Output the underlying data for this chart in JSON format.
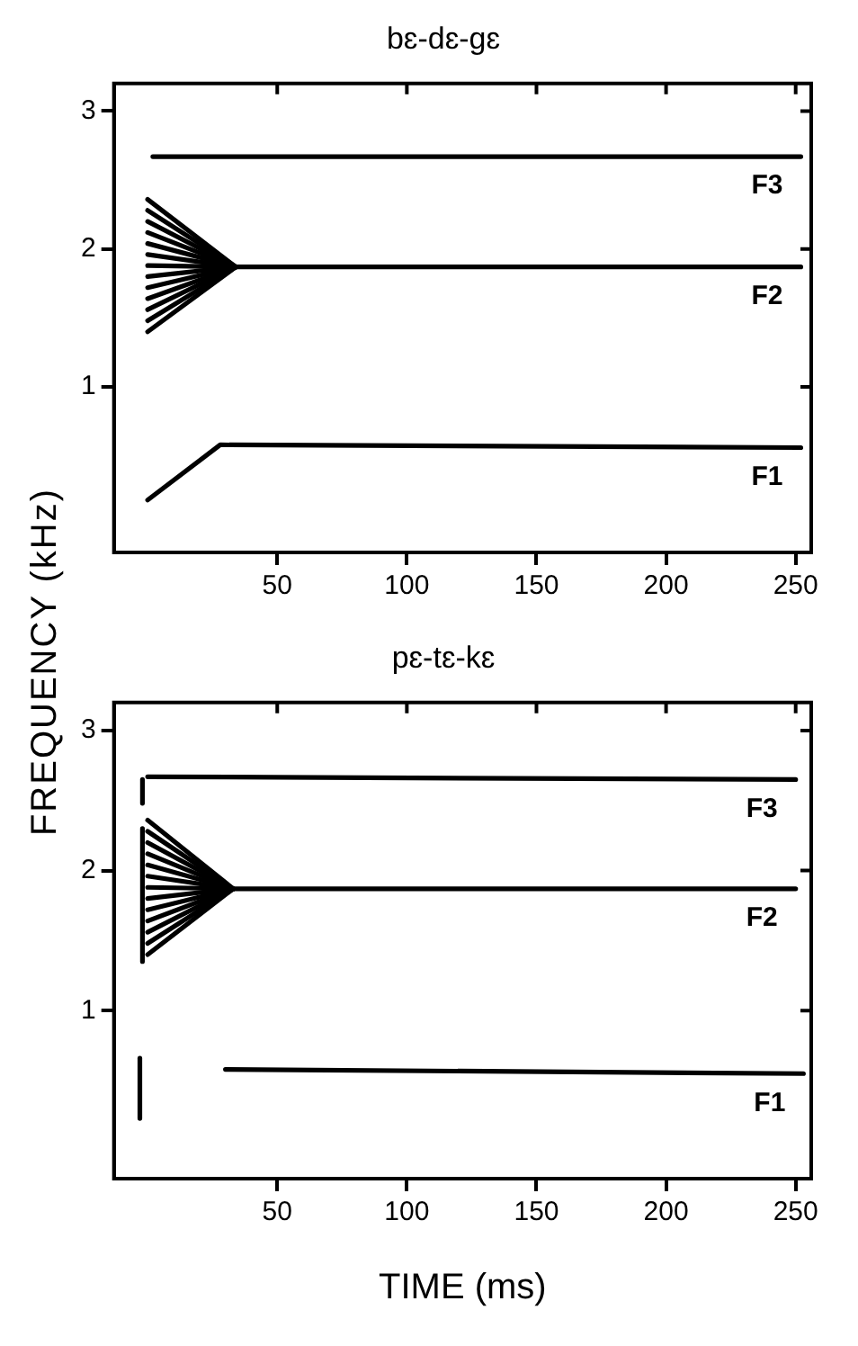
{
  "chart_data": [
    {
      "type": "line",
      "title": "bɛ-dɛ-gɛ",
      "ylabel": "FREQUENCY (kHz)",
      "xlim": [
        -13,
        256
      ],
      "ylim": [
        -0.2,
        3.2
      ],
      "xticks": [
        50,
        100,
        150,
        200,
        250
      ],
      "yticks": [
        1,
        2,
        3
      ],
      "series": [
        {
          "name": "F3",
          "color": "#000000",
          "x": [
            2,
            252
          ],
          "values": [
            2.67,
            2.67
          ]
        },
        {
          "name": "F2",
          "color": "#000000",
          "x": [
            0,
            34,
            252
          ],
          "values": [
            1.88,
            1.87,
            1.87
          ]
        },
        {
          "color": "#000000",
          "x": [
            0,
            34
          ],
          "values": [
            2.36,
            1.87
          ]
        },
        {
          "color": "#000000",
          "x": [
            0,
            34
          ],
          "values": [
            2.28,
            1.87
          ]
        },
        {
          "color": "#000000",
          "x": [
            0,
            34
          ],
          "values": [
            2.2,
            1.87
          ]
        },
        {
          "color": "#000000",
          "x": [
            0,
            34
          ],
          "values": [
            2.12,
            1.87
          ]
        },
        {
          "color": "#000000",
          "x": [
            0,
            34
          ],
          "values": [
            2.04,
            1.87
          ]
        },
        {
          "color": "#000000",
          "x": [
            0,
            34
          ],
          "values": [
            1.96,
            1.87
          ]
        },
        {
          "color": "#000000",
          "x": [
            0,
            34
          ],
          "values": [
            1.8,
            1.87
          ]
        },
        {
          "color": "#000000",
          "x": [
            0,
            34
          ],
          "values": [
            1.72,
            1.87
          ]
        },
        {
          "color": "#000000",
          "x": [
            0,
            34
          ],
          "values": [
            1.64,
            1.87
          ]
        },
        {
          "color": "#000000",
          "x": [
            0,
            34
          ],
          "values": [
            1.56,
            1.87
          ]
        },
        {
          "color": "#000000",
          "x": [
            0,
            34
          ],
          "values": [
            1.48,
            1.87
          ]
        },
        {
          "color": "#000000",
          "x": [
            0,
            34
          ],
          "values": [
            1.4,
            1.87
          ]
        },
        {
          "name": "F1",
          "color": "#000000",
          "x": [
            0,
            28,
            252
          ],
          "values": [
            0.18,
            0.58,
            0.56
          ]
        }
      ]
    },
    {
      "type": "line",
      "title": "pɛ-tɛ-kɛ",
      "xlabel": "TIME (ms)",
      "xlim": [
        -13,
        256
      ],
      "ylim": [
        -0.2,
        3.2
      ],
      "xticks": [
        50,
        100,
        150,
        200,
        250
      ],
      "yticks": [
        1,
        2,
        3
      ],
      "series": [
        {
          "color": "#000000",
          "x": [
            -2,
            -2
          ],
          "values": [
            2.48,
            2.65
          ]
        },
        {
          "name": "F3",
          "color": "#000000",
          "x": [
            0,
            250
          ],
          "values": [
            2.67,
            2.65
          ]
        },
        {
          "color": "#000000",
          "x": [
            -2,
            -2
          ],
          "values": [
            1.35,
            2.3
          ]
        },
        {
          "name": "F2",
          "color": "#000000",
          "x": [
            0,
            33,
            250
          ],
          "values": [
            1.88,
            1.87,
            1.87
          ]
        },
        {
          "color": "#000000",
          "x": [
            0,
            33
          ],
          "values": [
            2.36,
            1.87
          ]
        },
        {
          "color": "#000000",
          "x": [
            0,
            33
          ],
          "values": [
            2.28,
            1.87
          ]
        },
        {
          "color": "#000000",
          "x": [
            0,
            33
          ],
          "values": [
            2.2,
            1.87
          ]
        },
        {
          "color": "#000000",
          "x": [
            0,
            33
          ],
          "values": [
            2.12,
            1.87
          ]
        },
        {
          "color": "#000000",
          "x": [
            0,
            33
          ],
          "values": [
            2.04,
            1.87
          ]
        },
        {
          "color": "#000000",
          "x": [
            0,
            33
          ],
          "values": [
            1.96,
            1.87
          ]
        },
        {
          "color": "#000000",
          "x": [
            0,
            33
          ],
          "values": [
            1.8,
            1.87
          ]
        },
        {
          "color": "#000000",
          "x": [
            0,
            33
          ],
          "values": [
            1.72,
            1.87
          ]
        },
        {
          "color": "#000000",
          "x": [
            0,
            33
          ],
          "values": [
            1.64,
            1.87
          ]
        },
        {
          "color": "#000000",
          "x": [
            0,
            33
          ],
          "values": [
            1.56,
            1.87
          ]
        },
        {
          "color": "#000000",
          "x": [
            0,
            33
          ],
          "values": [
            1.48,
            1.87
          ]
        },
        {
          "color": "#000000",
          "x": [
            0,
            33
          ],
          "values": [
            1.4,
            1.87
          ]
        },
        {
          "color": "#000000",
          "x": [
            -3,
            -3
          ],
          "values": [
            0.23,
            0.66
          ]
        },
        {
          "name": "F1",
          "color": "#000000",
          "x": [
            30,
            253
          ],
          "values": [
            0.58,
            0.55
          ]
        }
      ]
    }
  ]
}
